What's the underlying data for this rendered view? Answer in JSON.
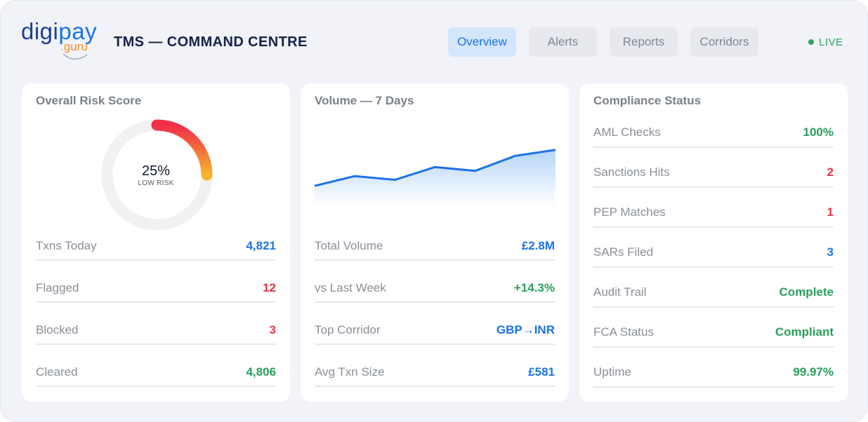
{
  "brand": {
    "logo_primary_a": "digi",
    "logo_primary_b": "pay",
    "logo_secondary_dot": ".",
    "logo_secondary": "guru"
  },
  "header": {
    "title": "TMS — COMMAND CENTRE",
    "tabs": [
      {
        "label": "Overview",
        "active": true
      },
      {
        "label": "Alerts",
        "active": false
      },
      {
        "label": "Reports",
        "active": false
      },
      {
        "label": "Corridors",
        "active": false
      }
    ],
    "status": "LIVE",
    "status_icon": "live-dot-icon"
  },
  "risk": {
    "title": "Overall Risk Score",
    "score_label": "25%",
    "score_value": 0.25,
    "risk_level": "LOW RISK",
    "rows": [
      {
        "label": "Txns Today",
        "value": "4,821",
        "tone": "blue"
      },
      {
        "label": "Flagged",
        "value": "12",
        "tone": "red"
      },
      {
        "label": "Blocked",
        "value": "3",
        "tone": "red"
      },
      {
        "label": "Cleared",
        "value": "4,806",
        "tone": "green"
      }
    ]
  },
  "volume": {
    "title": "Volume — 7 Days",
    "rows": [
      {
        "label": "Total Volume",
        "value": "£2.8M",
        "tone": "blue"
      },
      {
        "label": "vs Last Week",
        "value": "+14.3%",
        "tone": "green"
      },
      {
        "label": "Top Corridor",
        "value": "GBP→INR",
        "tone": "blue"
      },
      {
        "label": "Avg Txn Size",
        "value": "£581",
        "tone": "blue"
      }
    ]
  },
  "compliance": {
    "title": "Compliance Status",
    "rows": [
      {
        "label": "AML Checks",
        "value": "100%",
        "tone": "green"
      },
      {
        "label": "Sanctions Hits",
        "value": "2",
        "tone": "red"
      },
      {
        "label": "PEP Matches",
        "value": "1",
        "tone": "red"
      },
      {
        "label": "SARs Filed",
        "value": "3",
        "tone": "blue"
      },
      {
        "label": "Audit Trail",
        "value": "Complete",
        "tone": "green"
      },
      {
        "label": "FCA Status",
        "value": "Compliant",
        "tone": "green"
      },
      {
        "label": "Uptime",
        "value": "99.97%",
        "tone": "green"
      }
    ]
  },
  "chart_data": {
    "type": "area",
    "title": "Volume — 7 Days",
    "x": [
      1,
      2,
      3,
      4,
      5,
      6,
      7
    ],
    "series": [
      {
        "values": [
          0.27,
          0.4,
          0.35,
          0.52,
          0.47,
          0.67,
          0.75
        ]
      }
    ],
    "ylim": [
      0,
      1
    ],
    "xlabel": "",
    "ylabel": "",
    "grid": false,
    "colors": {
      "line": "#1a73e8",
      "fill_top": "#b7d5fa",
      "fill_bottom": "#ffffff"
    }
  },
  "colors": {
    "accent": "#1a73e8",
    "positive": "#28a05b",
    "negative": "#ec3044",
    "gauge_start": "#f5a623",
    "gauge_end": "#ef2d4a",
    "gauge_track": "#f1f1f1"
  }
}
